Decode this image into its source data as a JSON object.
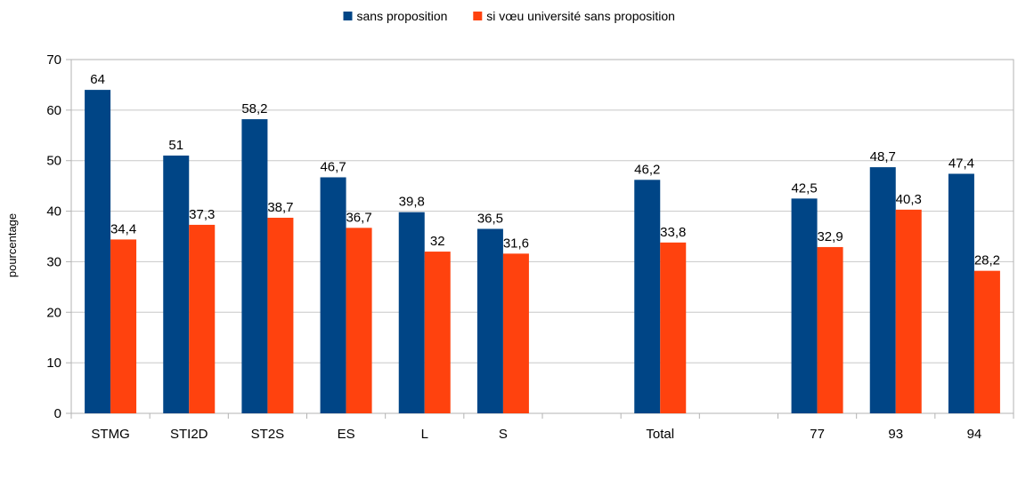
{
  "chart_data": {
    "type": "bar",
    "title": "",
    "xlabel": "",
    "ylabel": "pourcentage",
    "ylim": [
      0,
      70
    ],
    "yticks": [
      0,
      10,
      20,
      30,
      40,
      50,
      60,
      70
    ],
    "grid": true,
    "legend_position": "top-center",
    "categories": [
      "STMG",
      "STI2D",
      "ST2S",
      "ES",
      "L",
      "S",
      "",
      "Total",
      "",
      "77",
      "93",
      "94"
    ],
    "series": [
      {
        "name": "sans proposition",
        "color": "#004586",
        "values": [
          64,
          51,
          58.2,
          46.7,
          39.8,
          36.5,
          null,
          46.2,
          null,
          42.5,
          48.7,
          47.4
        ],
        "labels": [
          "64",
          "51",
          "58,2",
          "46,7",
          "39,8",
          "36,5",
          "",
          "46,2",
          "",
          "42,5",
          "48,7",
          "47,4"
        ]
      },
      {
        "name": "si vœu université sans proposition",
        "color": "#ff420e",
        "values": [
          34.4,
          37.3,
          38.7,
          36.7,
          32,
          31.6,
          null,
          33.8,
          null,
          32.9,
          40.3,
          28.2
        ],
        "labels": [
          "34,4",
          "37,3",
          "38,7",
          "36,7",
          "32",
          "31,6",
          "",
          "33,8",
          "",
          "32,9",
          "40,3",
          "28,2"
        ]
      }
    ]
  }
}
